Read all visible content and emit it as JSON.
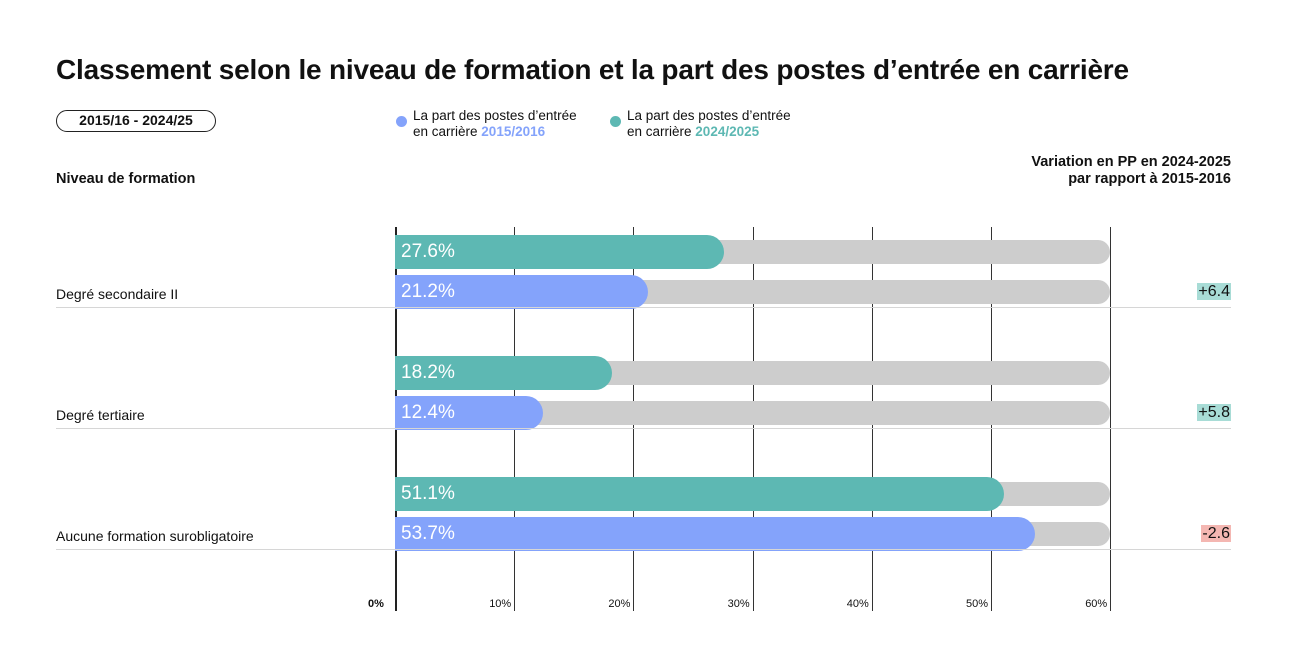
{
  "header": {
    "title": "Classement selon le niveau de formation et la part des postes d’entrée en carrière",
    "period": "2015/16 - 2024/25"
  },
  "legend": [
    {
      "text": "La part des postes d’entrée",
      "text2": "en carrière",
      "year": "2015/2016",
      "color": "#84a3fb"
    },
    {
      "text": "La part des postes d’entrée",
      "text2": "en carrière",
      "year": "2024/2025",
      "color": "#5db8b3"
    }
  ],
  "columns": {
    "left": "Niveau de formation",
    "right_line1": "Variation en PP en 2024-2025",
    "right_line2": "par rapport à 2015-2016"
  },
  "colors": {
    "series_2015": "#84a3fb",
    "series_2024": "#5db8b3",
    "track": "#cdcdcd",
    "variation_positive": "#a8dcd6",
    "variation_negative": "#f4b7b2"
  },
  "chart_data": {
    "type": "bar",
    "orientation": "horizontal",
    "categories": [
      "Degré secondaire II",
      "Degré tertiaire",
      "Aucune formation surobligatoire"
    ],
    "series": [
      {
        "name": "2024/2025",
        "values": [
          27.6,
          18.2,
          51.1
        ],
        "labels": [
          "27.6%",
          "18.2%",
          "51.1%"
        ]
      },
      {
        "name": "2015/2016",
        "values": [
          21.2,
          12.4,
          53.7
        ],
        "labels": [
          "21.2%",
          "12.4%",
          "53.7%"
        ]
      }
    ],
    "variation": [
      "+6.4",
      "+5.8",
      "-2.6"
    ],
    "xlim": [
      0,
      60
    ],
    "xticks": [
      "0%",
      "10%",
      "20%",
      "30%",
      "40%",
      "50%",
      "60%"
    ],
    "grid": true
  }
}
